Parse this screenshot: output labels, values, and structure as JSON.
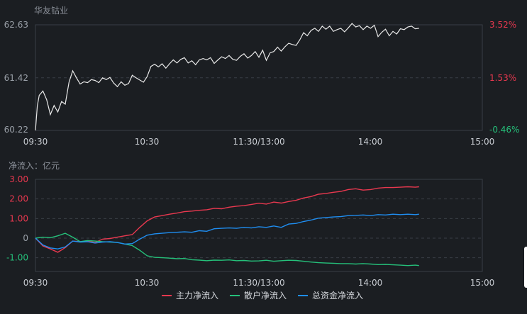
{
  "stock_name": "华友钴业",
  "flow_title": "净流入：亿元",
  "colors": {
    "up": "#e8384f",
    "down": "#25c07a",
    "price_line": "#e8e8e8",
    "main_flow": "#e8384f",
    "retail_flow": "#25c07a",
    "total_flow": "#1f8ef1"
  },
  "chart_data": [
    {
      "type": "line",
      "title": "华友钴业",
      "x_ticks": [
        "09:30",
        "10:30",
        "11:30/13:00",
        "14:00",
        "15:00"
      ],
      "y_ticks": [
        62.63,
        61.42,
        60.22
      ],
      "y_right_ticks": [
        "3.52%",
        "1.53%",
        "-0.46%"
      ],
      "ylim": [
        60.22,
        62.63
      ],
      "x_minutes_range": [
        0,
        240
      ],
      "series": [
        {
          "x_minutes": [
            0,
            1,
            2,
            4,
            6,
            8,
            10,
            12,
            14,
            16,
            18,
            20,
            22,
            24,
            26,
            28,
            30,
            32,
            34,
            36,
            38,
            40,
            42,
            44,
            46,
            48,
            50,
            52,
            54,
            56,
            58,
            60,
            62,
            64,
            66,
            68,
            70,
            72,
            74,
            76,
            78,
            80,
            82,
            84,
            86,
            88,
            90,
            92,
            94,
            96,
            98,
            100,
            102,
            104,
            106,
            108,
            110,
            112,
            114,
            116,
            118,
            120,
            122,
            124,
            126,
            128,
            130,
            132,
            134,
            136,
            138,
            140,
            142,
            144,
            146,
            148,
            150,
            152,
            154,
            156,
            158,
            160,
            162,
            164,
            166,
            168,
            170,
            172,
            174,
            176,
            178,
            180,
            182,
            184,
            186,
            188,
            190,
            192,
            194,
            196,
            198,
            200,
            202,
            204,
            206
          ],
          "values": [
            60.22,
            60.78,
            61.02,
            61.12,
            60.92,
            60.58,
            60.79,
            60.64,
            60.88,
            60.82,
            61.32,
            61.58,
            61.42,
            61.28,
            61.33,
            61.31,
            61.38,
            61.36,
            61.31,
            61.42,
            61.38,
            61.43,
            61.3,
            61.22,
            61.33,
            61.25,
            61.29,
            61.48,
            61.42,
            61.37,
            61.32,
            61.45,
            61.68,
            61.73,
            61.67,
            61.74,
            61.64,
            61.74,
            61.83,
            61.76,
            61.84,
            61.88,
            61.76,
            61.81,
            61.72,
            61.83,
            61.86,
            61.83,
            61.88,
            61.75,
            61.83,
            61.9,
            61.86,
            61.93,
            61.84,
            61.82,
            61.91,
            61.97,
            61.87,
            61.93,
            62.02,
            61.89,
            62.05,
            61.82,
            61.99,
            62.02,
            62.12,
            62.03,
            62.13,
            62.21,
            62.18,
            62.16,
            62.29,
            62.45,
            62.38,
            62.5,
            62.55,
            62.48,
            62.6,
            62.53,
            62.6,
            62.48,
            62.52,
            62.55,
            62.47,
            62.56,
            62.66,
            62.58,
            62.61,
            62.52,
            62.6,
            62.55,
            62.62,
            62.36,
            62.46,
            62.53,
            62.38,
            62.48,
            62.42,
            62.54,
            62.52,
            62.58,
            62.6,
            62.54,
            62.55
          ]
        }
      ]
    },
    {
      "type": "line",
      "title": "净流入：亿元",
      "x_ticks": [
        "09:30",
        "10:30",
        "11:30/13:00",
        "14:00",
        "15:00"
      ],
      "y_ticks": [
        "3.00",
        "2.00",
        "1.00",
        "0",
        "-1.00"
      ],
      "y_tick_values": [
        3,
        2,
        1,
        0,
        -1
      ],
      "ylim": [
        -1.7,
        3.0
      ],
      "x_minutes_range": [
        0,
        240
      ],
      "legend_position": "bottom",
      "x_minutes": [
        0,
        4,
        8,
        12,
        16,
        20,
        24,
        28,
        32,
        36,
        40,
        44,
        48,
        52,
        56,
        60,
        64,
        68,
        72,
        76,
        80,
        84,
        88,
        92,
        96,
        100,
        104,
        108,
        112,
        116,
        120,
        124,
        128,
        132,
        136,
        140,
        144,
        148,
        152,
        156,
        160,
        164,
        168,
        172,
        176,
        180,
        184,
        188,
        192,
        196,
        200,
        204,
        206
      ],
      "series": [
        {
          "name": "主力净流入",
          "values": [
            0.0,
            -0.4,
            -0.55,
            -0.72,
            -0.48,
            -0.15,
            -0.18,
            -0.15,
            -0.22,
            -0.05,
            -0.02,
            0.05,
            0.12,
            0.18,
            0.55,
            0.88,
            1.08,
            1.15,
            1.22,
            1.28,
            1.35,
            1.38,
            1.42,
            1.45,
            1.52,
            1.5,
            1.58,
            1.63,
            1.66,
            1.72,
            1.78,
            1.74,
            1.84,
            1.79,
            1.87,
            1.93,
            2.05,
            2.12,
            2.24,
            2.28,
            2.34,
            2.38,
            2.48,
            2.52,
            2.45,
            2.48,
            2.55,
            2.58,
            2.58,
            2.6,
            2.62,
            2.6,
            2.62
          ]
        },
        {
          "name": "散户净流入",
          "values": [
            0.0,
            0.05,
            0.02,
            0.12,
            0.25,
            0.05,
            -0.18,
            -0.12,
            -0.15,
            -0.18,
            -0.2,
            -0.22,
            -0.3,
            -0.38,
            -0.62,
            -0.9,
            -0.98,
            -1.0,
            -1.02,
            -1.05,
            -1.04,
            -1.1,
            -1.12,
            -1.15,
            -1.12,
            -1.13,
            -1.11,
            -1.15,
            -1.14,
            -1.17,
            -1.16,
            -1.13,
            -1.18,
            -1.15,
            -1.13,
            -1.14,
            -1.18,
            -1.22,
            -1.25,
            -1.27,
            -1.28,
            -1.3,
            -1.3,
            -1.32,
            -1.3,
            -1.32,
            -1.35,
            -1.34,
            -1.36,
            -1.38,
            -1.4,
            -1.38,
            -1.4
          ]
        },
        {
          "name": "总资金净流入",
          "values": [
            0.0,
            -0.35,
            -0.5,
            -0.55,
            -0.45,
            -0.15,
            -0.2,
            -0.18,
            -0.25,
            -0.2,
            -0.18,
            -0.22,
            -0.3,
            -0.28,
            -0.05,
            0.15,
            0.22,
            0.25,
            0.28,
            0.3,
            0.32,
            0.3,
            0.38,
            0.35,
            0.48,
            0.5,
            0.52,
            0.5,
            0.55,
            0.52,
            0.58,
            0.55,
            0.62,
            0.55,
            0.72,
            0.75,
            0.85,
            0.92,
            1.02,
            1.05,
            1.08,
            1.1,
            1.15,
            1.16,
            1.18,
            1.15,
            1.2,
            1.18,
            1.22,
            1.2,
            1.22,
            1.2,
            1.22
          ]
        }
      ]
    }
  ]
}
